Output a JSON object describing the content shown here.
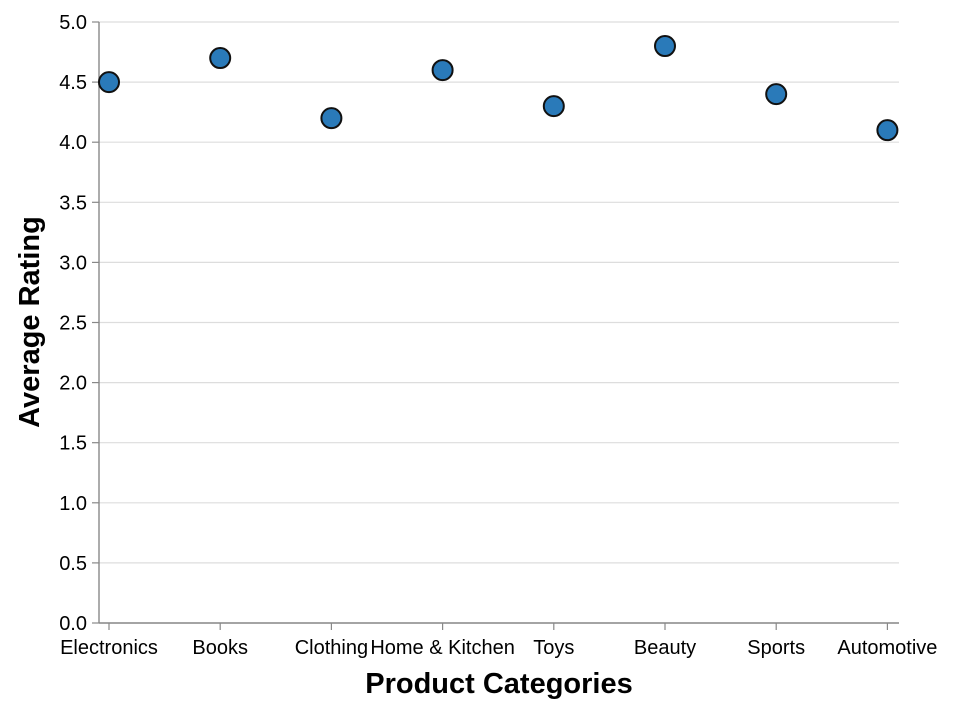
{
  "chart_data": {
    "type": "scatter",
    "xlabel": "Product Categories",
    "ylabel": "Average Rating",
    "categories": [
      "Electronics",
      "Books",
      "Clothing",
      "Home & Kitchen",
      "Toys",
      "Beauty",
      "Sports",
      "Automotive"
    ],
    "values": [
      4.5,
      4.7,
      4.2,
      4.6,
      4.3,
      4.8,
      4.4,
      4.1
    ],
    "ylim": [
      0,
      5
    ],
    "yticks": [
      0.0,
      0.5,
      1.0,
      1.5,
      2.0,
      2.5,
      3.0,
      3.5,
      4.0,
      4.5,
      5.0
    ],
    "ytick_labels": [
      "0.0",
      "0.5",
      "1.0",
      "1.5",
      "2.0",
      "2.5",
      "3.0",
      "3.5",
      "4.0",
      "4.5",
      "5.0"
    ],
    "grid": "horizontal",
    "legend": "none",
    "colors": {
      "marker_fill": "#2a7ab9",
      "marker_stroke": "#111111",
      "grid": "#dddddd",
      "axis": "#888888"
    }
  }
}
